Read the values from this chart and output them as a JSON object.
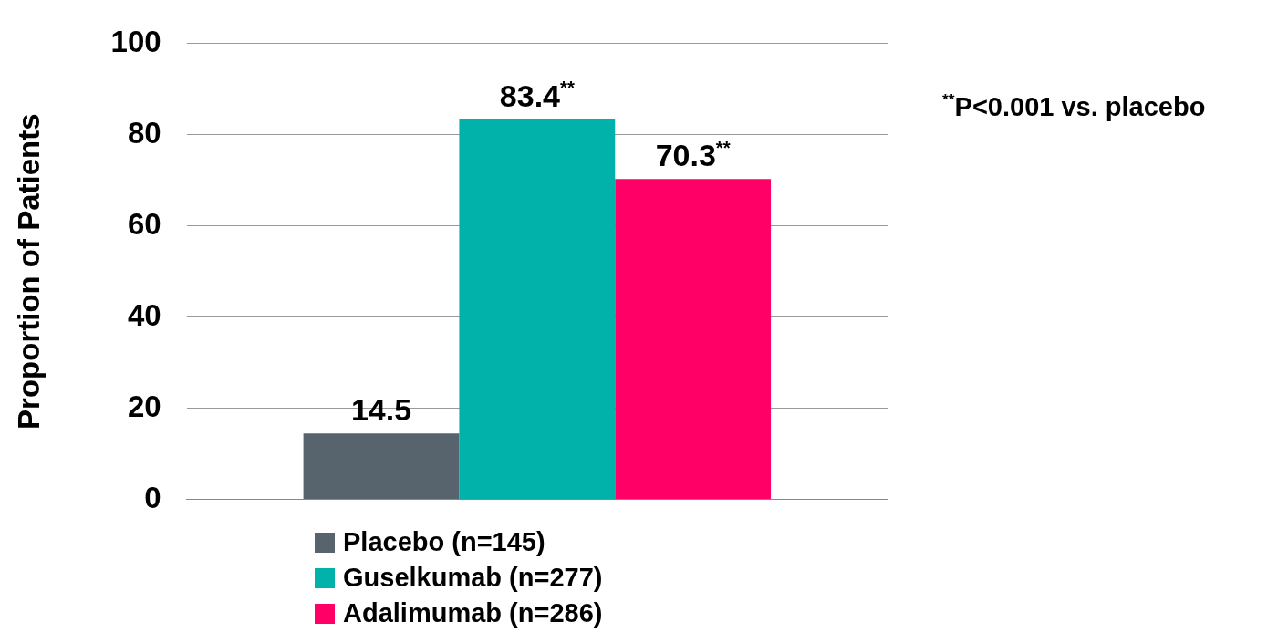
{
  "chart_data": {
    "type": "bar",
    "ylabel": "Proportion of Patients",
    "categories": [
      null
    ],
    "series": [
      {
        "name": "Placebo (n=145)",
        "color": "#58646d",
        "values": [
          14.5
        ],
        "value_labels": [
          "14.5"
        ]
      },
      {
        "name": "Guselkumab (n=277)",
        "color": "#00b2a9",
        "values": [
          83.4
        ],
        "value_labels": [
          "83.4$^{**}$"
        ]
      },
      {
        "name": "Adalimumab (n=286)",
        "color": "#ff0066",
        "values": [
          70.3
        ],
        "value_labels": [
          "70.3$^{**}$"
        ]
      }
    ],
    "ylim": [
      0,
      100
    ],
    "yticks": [
      0,
      20,
      40,
      60,
      80,
      100
    ],
    "grid": "y",
    "legend": "bottom",
    "annotations": [
      "$^{**}$P<0.001 vs. placebo"
    ]
  }
}
